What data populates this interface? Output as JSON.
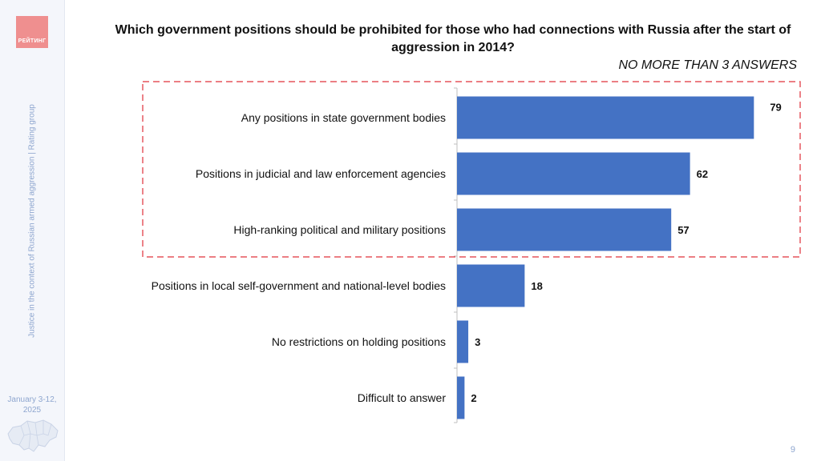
{
  "sidebar": {
    "logo_text": "РЕЙТИНГ",
    "vertical_text": "Justice in the context of Russian armed aggression | Rating group",
    "date": "January 3-12, 2025"
  },
  "page_number": "9",
  "colors": {
    "bar": "#4472c4",
    "highlight_border": "#e0303a"
  },
  "chart_data": {
    "type": "bar",
    "orientation": "horizontal",
    "title": "Which government positions should be prohibited for those who had connections with Russia after the start of aggression in 2014?",
    "subtitle": "NO MORE THAN 3 ANSWERS",
    "categories": [
      "Any positions in state government bodies",
      "Positions in judicial and law enforcement agencies",
      "High-ranking political and military positions",
      "Positions in local self-government and national-level bodies",
      "No restrictions on holding positions",
      "Difficult to answer"
    ],
    "values": [
      79,
      62,
      57,
      18,
      3,
      2
    ],
    "highlighted_categories": [
      0,
      1,
      2
    ],
    "xlim": [
      0,
      80
    ]
  }
}
